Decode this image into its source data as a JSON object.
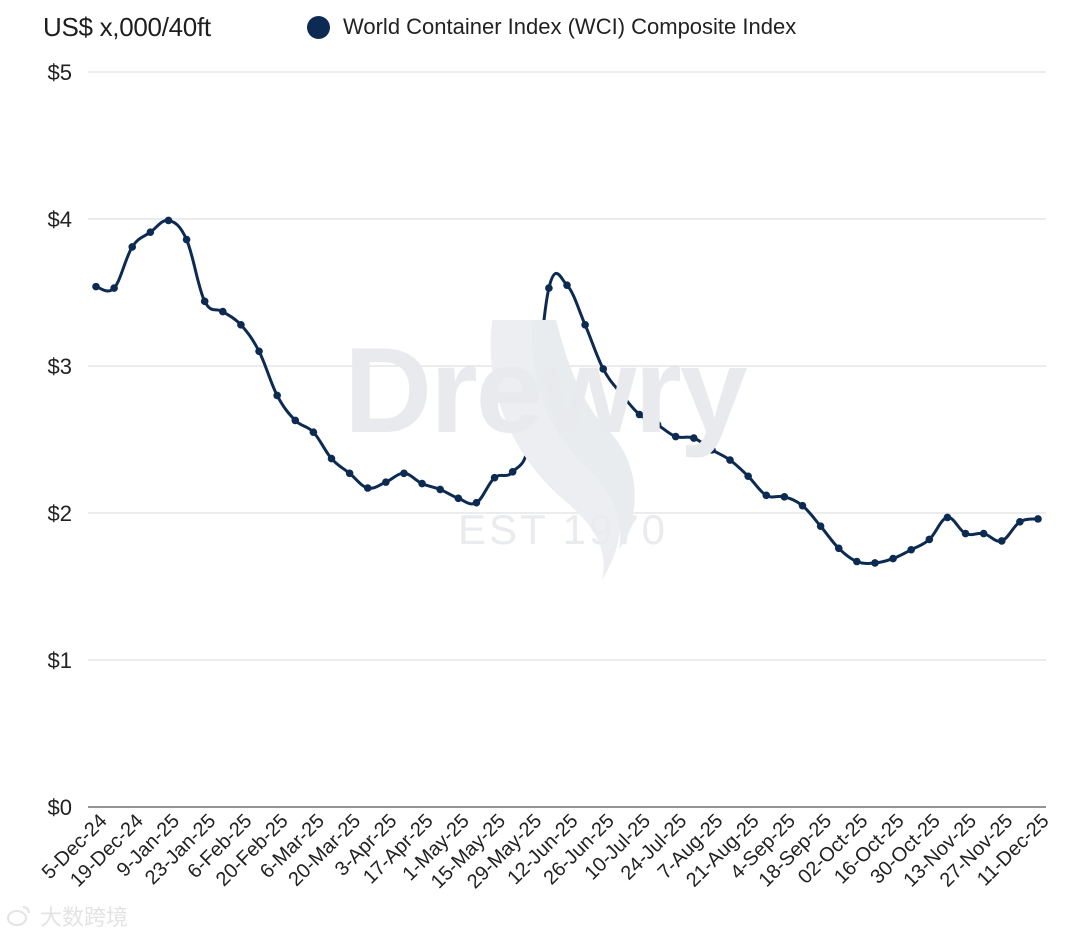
{
  "unit_label": "US$ x,000/40ft",
  "colors": {
    "series": "#0d2b52",
    "grid": "#d9d9d9",
    "axis": "#555555"
  },
  "watermark": {
    "brand": "Drewry",
    "est": "EST 1970"
  },
  "corner_mark": {
    "text": "大数跨境"
  },
  "chart_data": {
    "type": "line",
    "ylim": [
      0,
      5
    ],
    "yticks": [
      0,
      1,
      2,
      3,
      4,
      5
    ],
    "ytick_labels": [
      "$0",
      "$1",
      "$2",
      "$3",
      "$4",
      "$5"
    ],
    "grid": true,
    "legend": "top",
    "x_tick_labels": [
      "5-Dec-24",
      "19-Dec-24",
      "9-Jan-25",
      "23-Jan-25",
      "6-Feb-25",
      "20-Feb-25",
      "6-Mar-25",
      "20-Mar-25",
      "3-Apr-25",
      "17-Apr-25",
      "1-May-25",
      "15-May-25",
      "29-May-25",
      "12-Jun-25",
      "26-Jun-25",
      "10-Jul-25",
      "24-Jul-25",
      "7-Aug-25",
      "21-Aug-25",
      "4-Sep-25",
      "18-Sep-25",
      "02-Oct-25",
      "16-Oct-25",
      "30-Oct-25",
      "13-Nov-25",
      "27-Nov-25",
      "11-Dec-25"
    ],
    "series": [
      {
        "name": "World Container Index (WCI) Composite Index",
        "values": [
          3.54,
          3.53,
          3.81,
          3.91,
          3.99,
          3.86,
          3.44,
          3.37,
          3.28,
          3.1,
          2.8,
          2.63,
          2.55,
          2.37,
          2.27,
          2.17,
          2.21,
          2.27,
          2.2,
          2.16,
          2.1,
          2.07,
          2.24,
          2.28,
          2.52,
          3.53,
          3.55,
          3.28,
          2.98,
          2.81,
          2.67,
          2.6,
          2.52,
          2.51,
          2.43,
          2.36,
          2.25,
          2.12,
          2.11,
          2.05,
          1.91,
          1.76,
          1.67,
          1.66,
          1.69,
          1.75,
          1.82,
          1.97,
          1.86,
          1.86,
          1.81,
          1.94,
          1.96
        ]
      }
    ]
  }
}
